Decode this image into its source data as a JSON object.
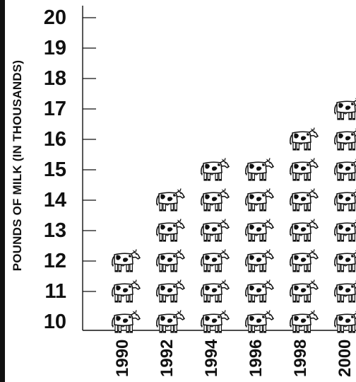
{
  "chart_data": {
    "type": "bar",
    "title": "",
    "ylabel": "POUNDS OF MILK (IN THOUSANDS)",
    "xlabel": "",
    "categories": [
      "1990",
      "1992",
      "1994",
      "1996",
      "1998",
      "2000"
    ],
    "values": [
      13.5,
      15.5,
      16.5,
      16.5,
      17.2,
      18.2
    ],
    "ylim": [
      10,
      20
    ],
    "yticks": [
      "10",
      "11",
      "12",
      "13",
      "14",
      "15",
      "16",
      "17",
      "18",
      "19",
      "20"
    ],
    "unit_icon": "cow-icon",
    "grid": false,
    "legend": "none",
    "colors": {
      "ink": "#111111",
      "cow_body": "#ffffff",
      "cow_spots": "#111111"
    }
  }
}
